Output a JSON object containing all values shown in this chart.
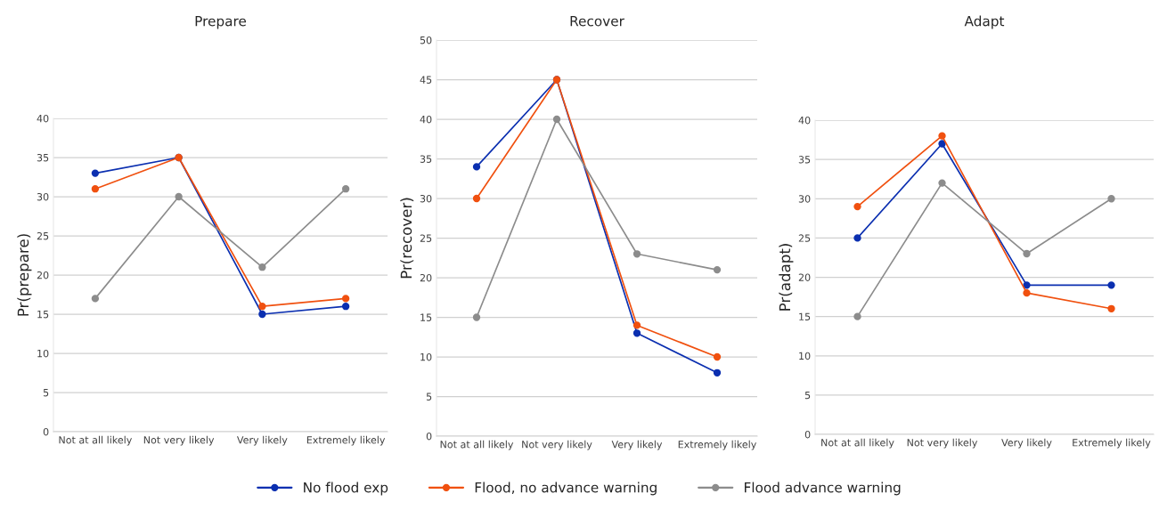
{
  "chart_data": [
    {
      "type": "line",
      "title": "Prepare",
      "ylabel": "Pr(prepare)",
      "categories": [
        "Not at all likely",
        "Not very likely",
        "Very likely",
        "Extremely likely"
      ],
      "ylim": [
        0,
        40
      ],
      "yticks": [
        0,
        5,
        10,
        15,
        20,
        25,
        30,
        35,
        40
      ],
      "grid": "y",
      "marker": "circle",
      "line_style": "solid",
      "legend": "bottom",
      "series": [
        {
          "name": "No flood exp",
          "color": "#0b2fb0",
          "values": [
            33,
            35,
            15,
            16
          ]
        },
        {
          "name": "Flood, no advance warning",
          "color": "#f0500f",
          "values": [
            31,
            35,
            16,
            17
          ]
        },
        {
          "name": "Flood advance warning",
          "color": "#8c8c8c",
          "values": [
            17,
            30,
            21,
            31
          ]
        }
      ]
    },
    {
      "type": "line",
      "title": "Recover",
      "ylabel": "Pr(recover)",
      "categories": [
        "Not at all likely",
        "Not very likely",
        "Very likely",
        "Extremely likely"
      ],
      "ylim": [
        0,
        50
      ],
      "yticks": [
        0,
        5,
        10,
        15,
        20,
        25,
        30,
        35,
        40,
        45,
        50
      ],
      "grid": "y",
      "marker": "circle",
      "line_style": "solid",
      "series": [
        {
          "color": "#0b2fb0",
          "values": [
            34,
            45,
            13,
            8
          ]
        },
        {
          "color": "#f0500f",
          "values": [
            30,
            45,
            14,
            10
          ]
        },
        {
          "color": "#8c8c8c",
          "values": [
            15,
            40,
            23,
            21
          ]
        }
      ]
    },
    {
      "type": "line",
      "title": "Adapt",
      "ylabel": "Pr(adapt)",
      "categories": [
        "Not at all likely",
        "Not very likely",
        "Very likely",
        "Extremely likely"
      ],
      "ylim": [
        0,
        40
      ],
      "yticks": [
        0,
        5,
        10,
        15,
        20,
        25,
        30,
        35,
        40
      ],
      "grid": "y",
      "marker": "circle",
      "line_style": "solid",
      "series": [
        {
          "color": "#0b2fb0",
          "values": [
            25,
            37,
            19,
            19
          ]
        },
        {
          "color": "#f0500f",
          "values": [
            29,
            38,
            18,
            16
          ]
        },
        {
          "color": "#8c8c8c",
          "values": [
            15,
            32,
            23,
            30
          ]
        }
      ]
    }
  ]
}
